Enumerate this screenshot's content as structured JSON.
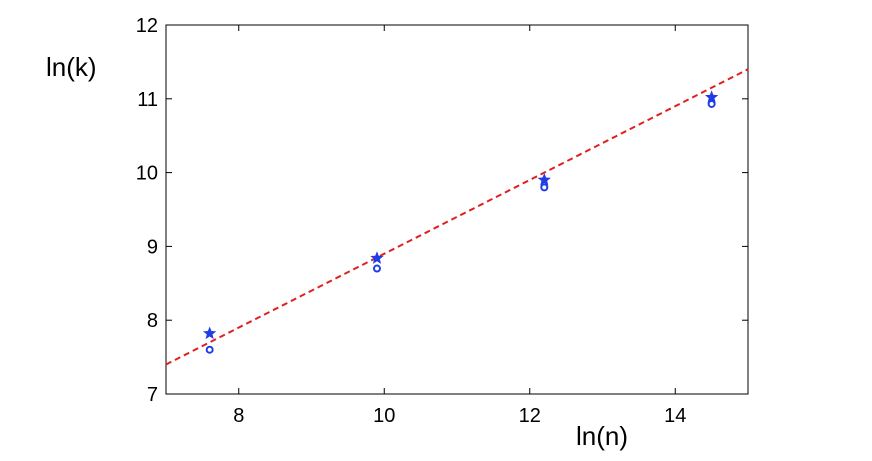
{
  "chart_data": {
    "type": "scatter",
    "xlabel": "ln(n)",
    "ylabel": "ln(k)",
    "xlim": [
      7,
      15
    ],
    "ylim": [
      7,
      12
    ],
    "xticks": [
      8,
      10,
      12,
      14
    ],
    "yticks": [
      7,
      8,
      9,
      10,
      11,
      12
    ],
    "grid": false,
    "colors": {
      "markers": "#1f3de6",
      "fit_line": "#e02020",
      "axes": "#000000"
    },
    "series": [
      {
        "marker": "star",
        "points": [
          {
            "x": 7.6,
            "y": 7.82
          },
          {
            "x": 9.9,
            "y": 8.84
          },
          {
            "x": 12.2,
            "y": 9.9
          },
          {
            "x": 14.5,
            "y": 11.02
          }
        ]
      },
      {
        "marker": "circle",
        "points": [
          {
            "x": 7.6,
            "y": 7.6
          },
          {
            "x": 9.9,
            "y": 8.7
          },
          {
            "x": 12.2,
            "y": 9.8
          },
          {
            "x": 14.5,
            "y": 10.93
          }
        ]
      }
    ],
    "fit_line": {
      "style": "dashed",
      "slope": 0.5,
      "intercept": 3.9
    }
  }
}
